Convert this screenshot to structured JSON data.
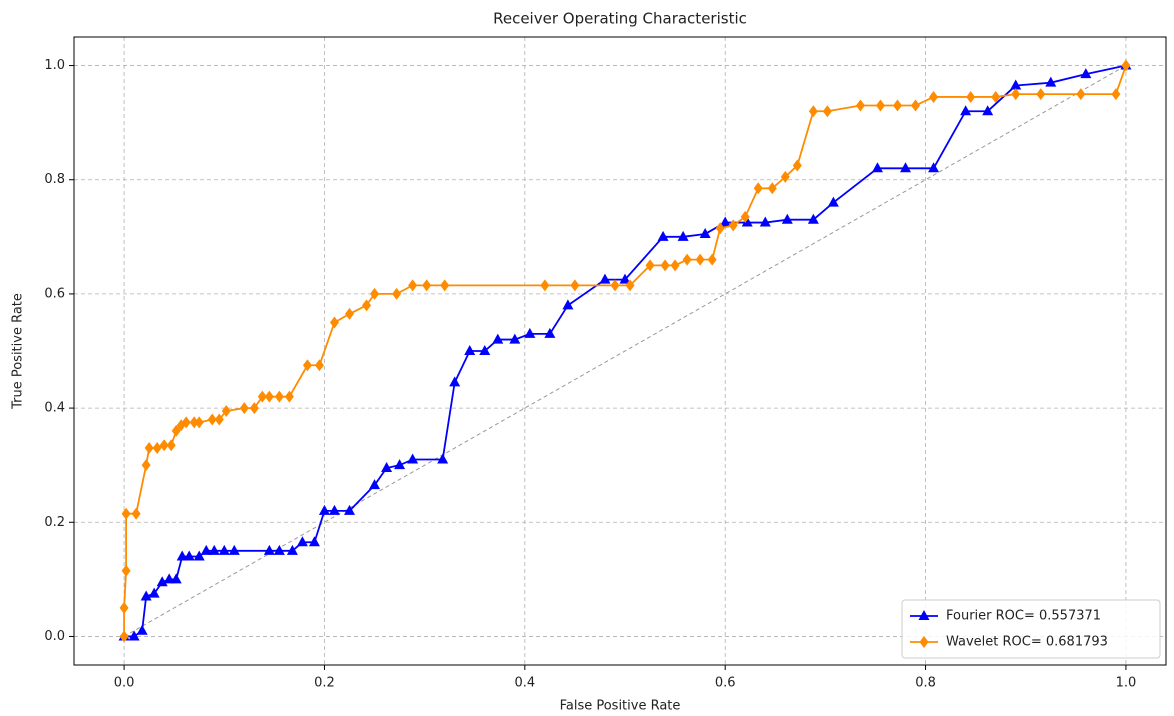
{
  "chart_data": {
    "type": "line",
    "title": "Receiver Operating Characteristic",
    "xlabel": "False Positive Rate",
    "ylabel": "True Positive Rate",
    "xlim": [
      -0.05,
      1.04
    ],
    "ylim": [
      -0.05,
      1.05
    ],
    "xticks": [
      {
        "value": 0,
        "label": "0.0"
      },
      0.2,
      0.4,
      0.6,
      0.8,
      {
        "value": 1,
        "label": "1.0"
      }
    ],
    "yticks": [
      {
        "value": 0,
        "label": "0.0"
      },
      0.2,
      0.4,
      0.6,
      0.8,
      {
        "value": 1,
        "label": "1.0"
      }
    ],
    "grid": true,
    "legend": "lower right",
    "reference_line": {
      "x": [
        0,
        1
      ],
      "y": [
        0,
        1
      ],
      "color": "#999999"
    },
    "series": [
      {
        "name": "Fourier ROC= 0.557371",
        "color": "#0000ff",
        "marker": "triangle",
        "x": [
          0,
          0.01,
          0.018,
          0.022,
          0.03,
          0.038,
          0.045,
          0.052,
          0.058,
          0.065,
          0.075,
          0.082,
          0.09,
          0.1,
          0.11,
          0.145,
          0.155,
          0.168,
          0.178,
          0.19,
          0.2,
          0.21,
          0.225,
          0.25,
          0.262,
          0.275,
          0.288,
          0.318,
          0.33,
          0.345,
          0.36,
          0.373,
          0.39,
          0.405,
          0.425,
          0.443,
          0.48,
          0.5,
          0.538,
          0.558,
          0.58,
          0.6,
          0.622,
          0.64,
          0.662,
          0.688,
          0.708,
          0.752,
          0.78,
          0.808,
          0.84,
          0.862,
          0.89,
          0.925,
          0.96,
          1
        ],
        "values": [
          0,
          0,
          0.01,
          0.07,
          0.075,
          0.095,
          0.1,
          0.1,
          0.14,
          0.14,
          0.14,
          0.15,
          0.15,
          0.15,
          0.15,
          0.15,
          0.15,
          0.15,
          0.165,
          0.165,
          0.22,
          0.22,
          0.22,
          0.265,
          0.295,
          0.3,
          0.31,
          0.31,
          0.445,
          0.5,
          0.5,
          0.52,
          0.52,
          0.53,
          0.53,
          0.58,
          0.625,
          0.625,
          0.7,
          0.7,
          0.705,
          0.725,
          0.725,
          0.725,
          0.73,
          0.73,
          0.76,
          0.82,
          0.82,
          0.82,
          0.92,
          0.92,
          0.965,
          0.97,
          0.985,
          1
        ]
      },
      {
        "name": "Wavelet ROC= 0.681793",
        "color": "#ff8c00",
        "marker": "diamond",
        "x": [
          0,
          0,
          0.002,
          0.002,
          0.012,
          0.022,
          0.025,
          0.033,
          0.04,
          0.047,
          0.052,
          0.057,
          0.062,
          0.07,
          0.075,
          0.088,
          0.095,
          0.102,
          0.12,
          0.13,
          0.138,
          0.145,
          0.155,
          0.165,
          0.183,
          0.195,
          0.21,
          0.225,
          0.242,
          0.25,
          0.272,
          0.288,
          0.302,
          0.32,
          0.42,
          0.45,
          0.49,
          0.505,
          0.525,
          0.54,
          0.55,
          0.562,
          0.575,
          0.587,
          0.595,
          0.608,
          0.62,
          0.633,
          0.647,
          0.66,
          0.672,
          0.688,
          0.702,
          0.735,
          0.755,
          0.772,
          0.79,
          0.808,
          0.845,
          0.87,
          0.89,
          0.915,
          0.955,
          0.99,
          1
        ],
        "values": [
          0,
          0.05,
          0.115,
          0.215,
          0.215,
          0.3,
          0.33,
          0.33,
          0.335,
          0.335,
          0.36,
          0.37,
          0.375,
          0.375,
          0.375,
          0.38,
          0.38,
          0.395,
          0.4,
          0.4,
          0.42,
          0.42,
          0.42,
          0.42,
          0.475,
          0.475,
          0.55,
          0.565,
          0.58,
          0.6,
          0.6,
          0.615,
          0.615,
          0.615,
          0.615,
          0.615,
          0.615,
          0.615,
          0.65,
          0.65,
          0.65,
          0.66,
          0.66,
          0.66,
          0.715,
          0.72,
          0.735,
          0.785,
          0.785,
          0.805,
          0.825,
          0.92,
          0.92,
          0.93,
          0.93,
          0.93,
          0.93,
          0.945,
          0.945,
          0.945,
          0.95,
          0.95,
          0.95,
          0.95,
          1
        ]
      }
    ]
  }
}
